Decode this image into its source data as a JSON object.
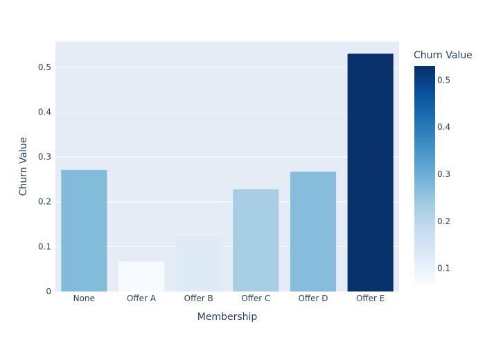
{
  "chart_data": {
    "type": "bar",
    "categories": [
      "None",
      "Offer A",
      "Offer B",
      "Offer C",
      "Offer D",
      "Offer E"
    ],
    "values": [
      0.271,
      0.067,
      0.124,
      0.228,
      0.267,
      0.53
    ],
    "xlabel": "Membership",
    "ylabel": "Churn Value",
    "ylim": [
      0,
      0.557
    ],
    "yticks": [
      0,
      0.1,
      0.2,
      0.3,
      0.4,
      0.5
    ],
    "yticklabels": [
      "0",
      "0.1",
      "0.2",
      "0.3",
      "0.4",
      "0.5"
    ],
    "grid": true,
    "colorbar": {
      "title": "Churn Value",
      "colorscale": "Blues",
      "range": [
        0.067,
        0.53
      ],
      "ticks": [
        0.1,
        0.2,
        0.3,
        0.4,
        0.5
      ],
      "ticklabels": [
        "0.1",
        "0.2",
        "0.3",
        "0.4",
        "0.5"
      ]
    },
    "colors": {
      "plot_background": "#e5ecf6",
      "text": "#2a3f5f",
      "grid": "#ffffff"
    }
  }
}
